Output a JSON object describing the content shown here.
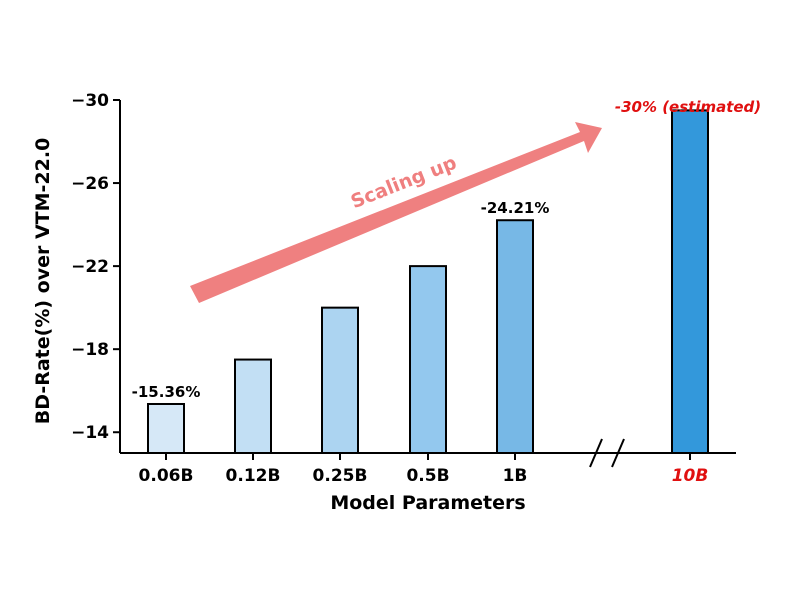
{
  "chart_data": {
    "type": "bar",
    "categories": [
      "0.06B",
      "0.12B",
      "0.25B",
      "0.5B",
      "1B",
      "10B"
    ],
    "values": [
      -15.36,
      -17.5,
      -20.0,
      -22.0,
      -24.21,
      -29.5
    ],
    "data_labels": [
      {
        "index": 0,
        "text": "-15.36%"
      },
      {
        "index": 4,
        "text": "-24.21%"
      },
      {
        "index": 5,
        "text": "-30% (estimated)"
      }
    ],
    "highlight_category": "10B",
    "xlabel": "Model Parameters",
    "ylabel": "BD-Rate(%) over VTM-22.0",
    "ylim": [
      -13,
      -30
    ],
    "yticks": [
      -30,
      -26,
      -22,
      -18,
      -14
    ],
    "ytick_labels": [
      "−30",
      "−26",
      "−22",
      "−18",
      "−14"
    ],
    "y_axis_inverted": true,
    "axis_break_between": [
      "1B",
      "10B"
    ],
    "annotation_arrow_text": "Scaling up",
    "grid": false,
    "legend": "none",
    "colors": {
      "bars": [
        "#d6e8f7",
        "#c2dff4",
        "#acd4f1",
        "#93c8ee",
        "#77b8e6",
        "#3398db"
      ],
      "bar_edge": "#000000",
      "arrow": "#ef8080",
      "highlight_text": "#e01010"
    }
  }
}
